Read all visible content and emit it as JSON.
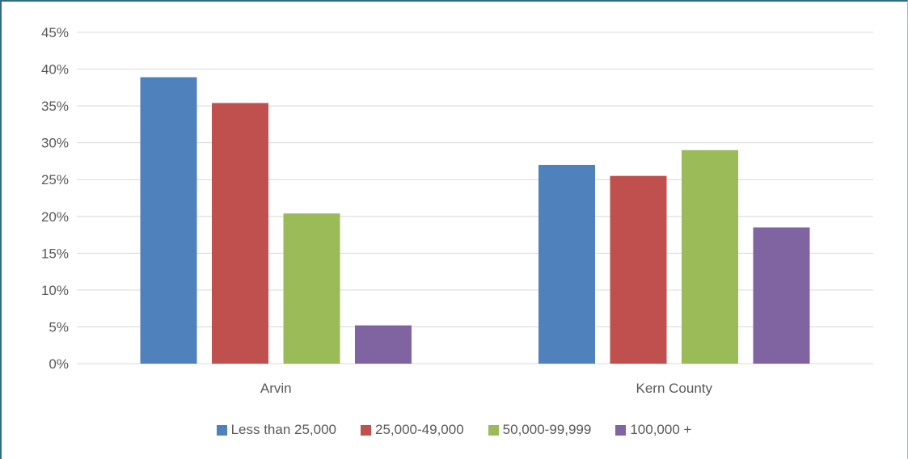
{
  "chart_data": {
    "type": "bar",
    "title": "",
    "xlabel": "",
    "ylabel": "",
    "categories": [
      "Arvin",
      "Kern County"
    ],
    "series": [
      {
        "name": "Less than 25,000",
        "color": "#4f81bd",
        "values": [
          0.389,
          0.27
        ]
      },
      {
        "name": "25,000-49,000",
        "color": "#c0504d",
        "values": [
          0.354,
          0.255
        ]
      },
      {
        "name": "50,000-99,999",
        "color": "#9bbb59",
        "values": [
          0.204,
          0.29
        ]
      },
      {
        "name": "100,000 +",
        "color": "#8064a2",
        "values": [
          0.052,
          0.185
        ]
      }
    ],
    "ylim": [
      0,
      0.45
    ],
    "yticks": [
      0,
      0.05,
      0.1,
      0.15,
      0.2,
      0.25,
      0.3,
      0.35,
      0.4,
      0.45
    ],
    "ytick_labels": [
      "0%",
      "5%",
      "10%",
      "15%",
      "20%",
      "25%",
      "30%",
      "35%",
      "40%",
      "45%"
    ],
    "grid": true,
    "gridline_color": "#d9d9d9",
    "legend_position": "bottom"
  }
}
